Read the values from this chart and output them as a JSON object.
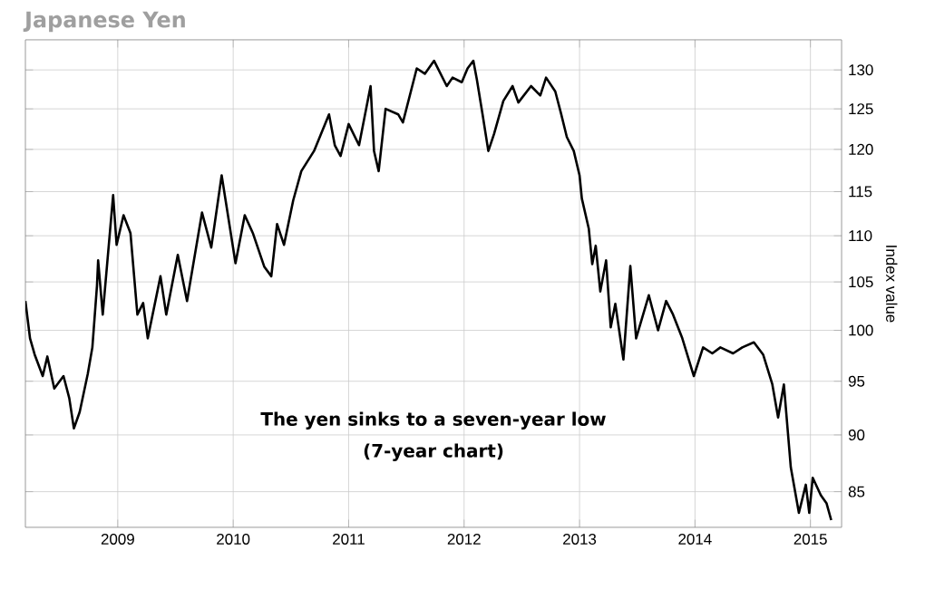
{
  "chart_data": {
    "type": "line",
    "title": "Japanese Yen",
    "ylabel": "Index value",
    "annotations": [
      "The yen sinks to a seven-year low",
      "(7-year chart)"
    ],
    "x": [
      2008.2,
      2008.24,
      2008.28,
      2008.35,
      2008.39,
      2008.45,
      2008.53,
      2008.58,
      2008.62,
      2008.67,
      2008.74,
      2008.78,
      2008.82,
      2008.83,
      2008.87,
      2008.96,
      2008.99,
      2009.05,
      2009.11,
      2009.17,
      2009.22,
      2009.26,
      2009.37,
      2009.42,
      2009.52,
      2009.6,
      2009.73,
      2009.81,
      2009.9,
      2010.02,
      2010.1,
      2010.17,
      2010.27,
      2010.33,
      2010.38,
      2010.44,
      2010.52,
      2010.59,
      2010.7,
      2010.83,
      2010.88,
      2010.93,
      2011.0,
      2011.09,
      2011.19,
      2011.22,
      2011.26,
      2011.32,
      2011.43,
      2011.47,
      2011.59,
      2011.66,
      2011.74,
      2011.85,
      2011.9,
      2011.98,
      2012.03,
      2012.08,
      2012.11,
      2012.16,
      2012.21,
      2012.26,
      2012.34,
      2012.42,
      2012.47,
      2012.58,
      2012.66,
      2012.71,
      2012.79,
      2012.84,
      2012.89,
      2012.95,
      2013.0,
      2013.02,
      2013.08,
      2013.11,
      2013.14,
      2013.18,
      2013.23,
      2013.27,
      2013.31,
      2013.38,
      2013.44,
      2013.49,
      2013.6,
      2013.68,
      2013.75,
      2013.81,
      2013.89,
      2013.99,
      2014.07,
      2014.15,
      2014.22,
      2014.33,
      2014.41,
      2014.51,
      2014.59,
      2014.67,
      2014.72,
      2014.77,
      2014.83,
      2014.9,
      2014.96,
      2014.99,
      2015.02,
      2015.09,
      2015.14,
      2015.18
    ],
    "series": [
      {
        "color": "#000000",
        "values": [
          103.0,
          99.2,
          97.6,
          95.5,
          97.4,
          94.3,
          95.5,
          93.4,
          90.6,
          92.1,
          95.7,
          98.3,
          104.6,
          107.3,
          101.6,
          114.6,
          109.0,
          112.3,
          110.3,
          101.6,
          102.8,
          99.2,
          105.6,
          101.6,
          107.9,
          103.0,
          112.6,
          108.7,
          116.9,
          107.0,
          112.3,
          110.3,
          106.6,
          105.6,
          111.3,
          109.0,
          114.0,
          117.4,
          119.8,
          124.3,
          120.5,
          119.2,
          123.1,
          120.5,
          127.9,
          119.8,
          117.4,
          125.0,
          124.3,
          123.3,
          130.2,
          129.5,
          131.2,
          127.9,
          129.0,
          128.4,
          130.2,
          131.2,
          128.8,
          124.3,
          119.8,
          121.9,
          126.0,
          127.9,
          125.8,
          127.9,
          126.7,
          129.0,
          127.2,
          124.4,
          121.5,
          119.8,
          116.9,
          114.2,
          110.8,
          106.9,
          108.9,
          104.0,
          107.3,
          100.3,
          102.7,
          97.1,
          106.7,
          99.2,
          103.6,
          100.0,
          103.0,
          101.6,
          99.2,
          95.5,
          98.3,
          97.7,
          98.3,
          97.7,
          98.3,
          98.8,
          97.6,
          94.7,
          91.6,
          94.7,
          87.1,
          83.2,
          85.6,
          83.2,
          86.2,
          84.7,
          84.0,
          82.6
        ]
      }
    ],
    "xlim": [
      2008.2,
      2015.27
    ],
    "ylim": [
      82,
      134
    ],
    "log": "y",
    "xticks": [
      2009,
      2010,
      2011,
      2012,
      2013,
      2014,
      2015
    ],
    "yticks": [
      85,
      90,
      95,
      100,
      105,
      110,
      115,
      120,
      125,
      130
    ],
    "grid": true,
    "line_style": "solid",
    "marker": "none"
  }
}
